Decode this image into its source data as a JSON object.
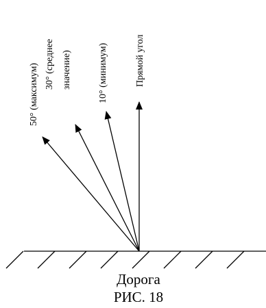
{
  "diagram": {
    "labels": {
      "max": "50° (максимум)",
      "avg_line1": "30° (среднее",
      "avg_line2": "значение)",
      "min": "10° (минимум)",
      "right": "Прямой угол"
    },
    "road_label": "Дорога",
    "figure_label": "РИС. 18",
    "colors": {
      "ink": "#000000",
      "background": "#ffffff"
    }
  }
}
